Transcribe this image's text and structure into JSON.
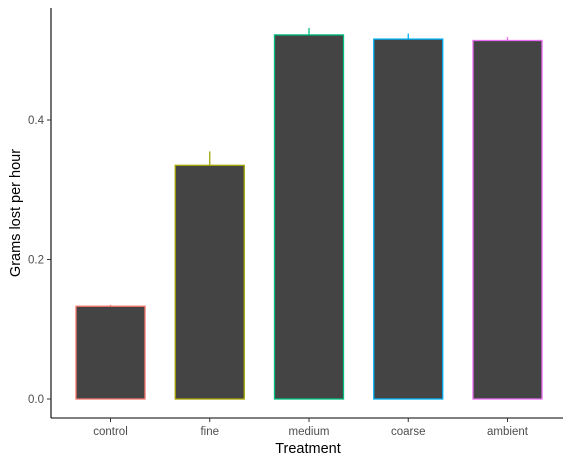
{
  "chart_data": {
    "type": "bar",
    "title": "",
    "xlabel": "Treatment",
    "ylabel": "Grams lost per hour",
    "categories": [
      "control",
      "fine",
      "medium",
      "coarse",
      "ambient"
    ],
    "values": [
      0.133,
      0.335,
      0.522,
      0.516,
      0.514
    ],
    "errors": [
      0.002,
      0.02,
      0.01,
      0.008,
      0.005
    ],
    "ylim": [
      -0.03,
      0.56
    ],
    "yticks": [
      0.0,
      0.2,
      0.4
    ],
    "ytick_labels": [
      "0.0",
      "0.2",
      "0.4"
    ],
    "grid": false,
    "legend": "none",
    "bar_fill": "#444444",
    "outline_colors": [
      "#f8766d",
      "#a3a500",
      "#00bf7d",
      "#00b0f6",
      "#e76bf3"
    ],
    "axis_color": "#000000",
    "background": "#ffffff"
  }
}
